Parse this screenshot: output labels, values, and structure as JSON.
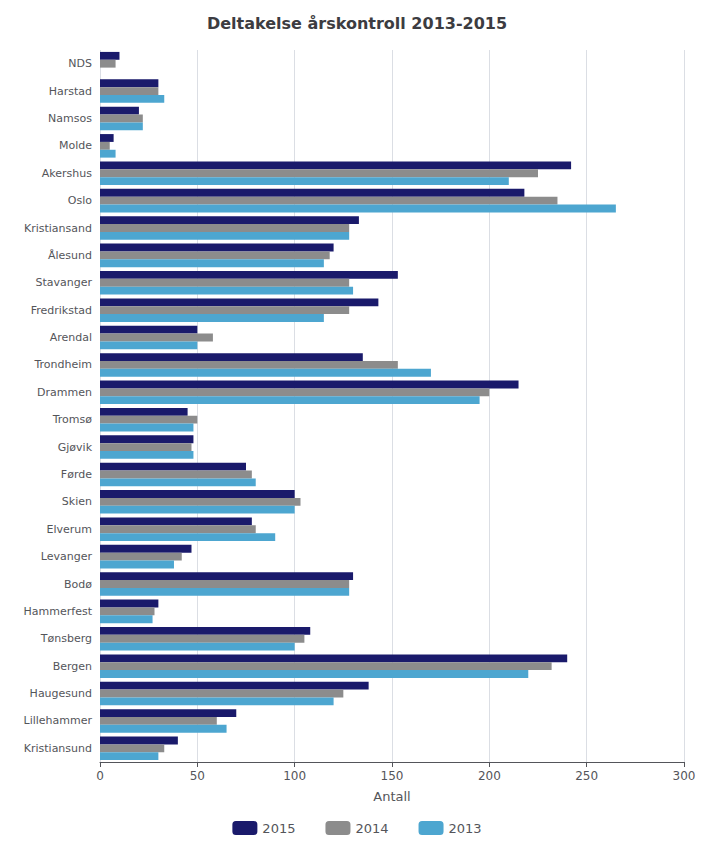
{
  "chart_data": {
    "type": "bar",
    "orientation": "horizontal",
    "title": "Deltakelse årskontroll 2013-2015",
    "xlabel": "Antall",
    "categories": [
      "Kristiansund",
      "Lillehammer",
      "Haugesund",
      "Bergen",
      "Tønsberg",
      "Hammerfest",
      "Bodø",
      "Levanger",
      "Elverum",
      "Skien",
      "Førde",
      "Gjøvik",
      "Tromsø",
      "Drammen",
      "Trondheim",
      "Arendal",
      "Fredrikstad",
      "Stavanger",
      "Ålesund",
      "Kristiansand",
      "Oslo",
      "Akershus",
      "Molde",
      "Namsos",
      "Harstad",
      "NDS"
    ],
    "series": [
      {
        "name": "2015",
        "color": "#1a1a6b",
        "values": [
          40,
          70,
          138,
          240,
          108,
          30,
          130,
          47,
          78,
          100,
          75,
          48,
          45,
          215,
          135,
          50,
          143,
          153,
          120,
          133,
          218,
          242,
          7,
          20,
          30,
          10
        ]
      },
      {
        "name": "2014",
        "color": "#8c8c8c",
        "values": [
          33,
          60,
          125,
          232,
          105,
          28,
          128,
          42,
          80,
          103,
          78,
          47,
          50,
          200,
          153,
          58,
          128,
          128,
          118,
          128,
          235,
          225,
          5,
          22,
          30,
          8
        ]
      },
      {
        "name": "2013",
        "color": "#4da6d0",
        "values": [
          30,
          65,
          120,
          220,
          100,
          27,
          128,
          38,
          90,
          100,
          80,
          48,
          48,
          195,
          170,
          50,
          115,
          130,
          115,
          128,
          265,
          210,
          8,
          22,
          33,
          0
        ]
      }
    ],
    "xlim": [
      0,
      300
    ],
    "xticks": [
      0,
      50,
      100,
      150,
      200,
      250,
      300
    ],
    "grid": true,
    "legend": "bottom"
  }
}
